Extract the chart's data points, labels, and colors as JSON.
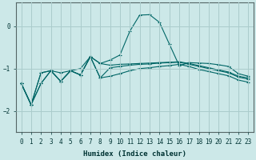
{
  "xlabel": "Humidex (Indice chaleur)",
  "background_color": "#cce8e8",
  "grid_color": "#aacccc",
  "line_color": "#006666",
  "xlim": [
    -0.5,
    23.5
  ],
  "ylim": [
    -2.5,
    0.55
  ],
  "xticks": [
    0,
    1,
    2,
    3,
    4,
    5,
    6,
    7,
    8,
    9,
    10,
    11,
    12,
    13,
    14,
    15,
    16,
    17,
    18,
    19,
    20,
    21,
    22,
    23
  ],
  "yticks": [
    0,
    -1,
    -2
  ],
  "series": [
    [
      -1.35,
      -1.85,
      -1.35,
      -1.05,
      -1.3,
      -1.05,
      -1.15,
      -0.72,
      -1.22,
      -0.98,
      -0.95,
      -0.92,
      -0.9,
      -0.89,
      -0.87,
      -0.86,
      -0.85,
      -0.9,
      -0.95,
      -1.0,
      -1.05,
      -1.1,
      -1.2,
      -1.25
    ],
    [
      -1.35,
      -1.85,
      -1.1,
      -1.05,
      -1.3,
      -1.05,
      -1.15,
      -0.72,
      -0.88,
      -0.8,
      -0.68,
      -0.12,
      0.26,
      0.27,
      0.09,
      -0.42,
      -0.93,
      -0.86,
      -0.87,
      -0.88,
      -0.91,
      -0.95,
      -1.12,
      -1.18
    ],
    [
      -1.35,
      -1.85,
      -1.1,
      -1.05,
      -1.1,
      -1.05,
      -1.0,
      -0.72,
      -0.88,
      -0.92,
      -0.9,
      -0.89,
      -0.88,
      -0.87,
      -0.86,
      -0.85,
      -0.84,
      -0.88,
      -0.93,
      -0.98,
      -1.03,
      -1.08,
      -1.18,
      -1.22
    ],
    [
      -1.35,
      -1.85,
      -1.35,
      -1.05,
      -1.3,
      -1.05,
      -1.15,
      -0.72,
      -1.22,
      -1.18,
      -1.12,
      -1.05,
      -1.0,
      -0.98,
      -0.95,
      -0.93,
      -0.9,
      -0.95,
      -1.02,
      -1.07,
      -1.12,
      -1.17,
      -1.27,
      -1.32
    ]
  ]
}
